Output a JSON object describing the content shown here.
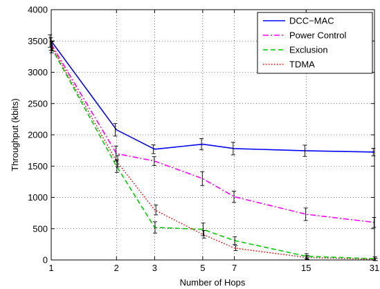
{
  "chart_data": {
    "type": "line",
    "xlabel": "Number of Hops",
    "ylabel": "Throughput (kbits)",
    "x_scale": "log",
    "xlim": [
      1,
      31
    ],
    "ylim": [
      0,
      4000
    ],
    "x_ticks": [
      1,
      2,
      3,
      5,
      7,
      15,
      31
    ],
    "y_ticks": [
      0,
      500,
      1000,
      1500,
      2000,
      2500,
      3000,
      3500,
      4000
    ],
    "grid": true,
    "legend_position": "top-right",
    "x": [
      1,
      2,
      3,
      5,
      7,
      15,
      31
    ],
    "series": [
      {
        "name": "DCC−MAC",
        "color": "#0000ff",
        "dash": "solid",
        "values": [
          3500,
          2080,
          1770,
          1850,
          1780,
          1745,
          1725
        ],
        "error": [
          100,
          100,
          70,
          90,
          100,
          90,
          60
        ]
      },
      {
        "name": "Power Control",
        "color": "#ff00ff",
        "dash": "dashdot",
        "values": [
          3450,
          1700,
          1580,
          1300,
          1010,
          730,
          600
        ],
        "error": [
          100,
          120,
          70,
          110,
          90,
          100,
          80
        ]
      },
      {
        "name": "Exclusion",
        "color": "#00cc00",
        "dash": "dashed",
        "values": [
          3400,
          1500,
          520,
          490,
          310,
          60,
          20
        ],
        "error": [
          90,
          100,
          90,
          100,
          60,
          40,
          30
        ]
      },
      {
        "name": "TDMA",
        "color": "#ff0000",
        "dash": "dotted",
        "values": [
          3420,
          1580,
          800,
          410,
          190,
          40,
          10
        ],
        "error": [
          80,
          90,
          80,
          60,
          40,
          30,
          20
        ]
      }
    ]
  }
}
